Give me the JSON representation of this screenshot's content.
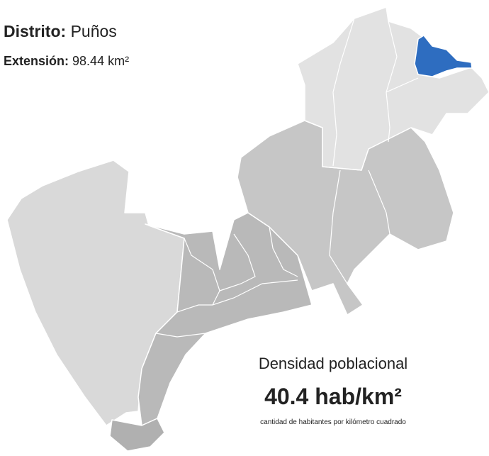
{
  "header": {
    "district": {
      "label": "Distrito:",
      "value": "Puños"
    },
    "extension": {
      "label": "Extensión:",
      "value": "98.44 km²"
    }
  },
  "density": {
    "title": "Densidad poblacional",
    "value": "40.4 hab/km²",
    "note": "cantidad de habitantes por kilómetro cuadrado"
  }
}
